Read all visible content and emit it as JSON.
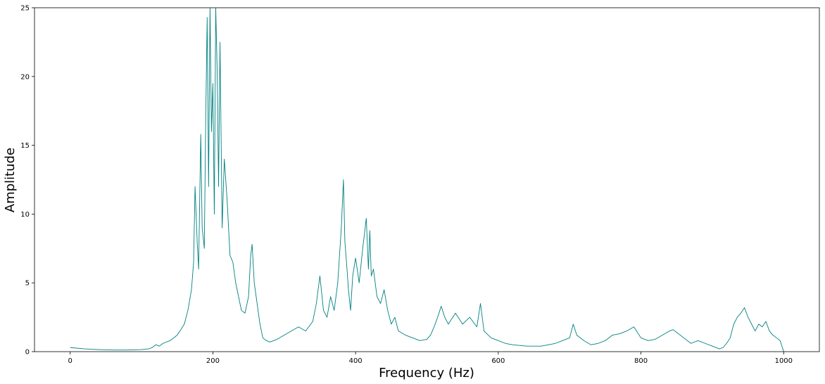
{
  "chart_data": {
    "type": "line",
    "title": "",
    "xlabel": "Frequency (Hz)",
    "ylabel": "Amplitude",
    "xlim": [
      -50,
      1050
    ],
    "ylim": [
      0,
      25
    ],
    "xticks": [
      0,
      200,
      400,
      600,
      800,
      1000
    ],
    "yticks": [
      0,
      5,
      10,
      15,
      20,
      25
    ],
    "grid": false,
    "line_color": "#008080",
    "series": [
      {
        "x": [
          0,
          20,
          40,
          60,
          80,
          100,
          110,
          115,
          120,
          125,
          130,
          140,
          150,
          160,
          165,
          170,
          173,
          175,
          178,
          180,
          183,
          185,
          188,
          190,
          192,
          194,
          196,
          198,
          200,
          202,
          204,
          206,
          208,
          210,
          213,
          216,
          220,
          224,
          228,
          232,
          236,
          240,
          245,
          250,
          253,
          255,
          258,
          262,
          266,
          270,
          275,
          280,
          290,
          300,
          310,
          320,
          330,
          340,
          345,
          350,
          355,
          360,
          365,
          370,
          375,
          380,
          383,
          385,
          388,
          390,
          393,
          396,
          400,
          405,
          410,
          415,
          418,
          420,
          422,
          425,
          430,
          435,
          440,
          445,
          450,
          455,
          460,
          470,
          480,
          490,
          500,
          505,
          510,
          515,
          520,
          525,
          530,
          540,
          550,
          560,
          570,
          575,
          580,
          590,
          600,
          610,
          620,
          640,
          660,
          680,
          690,
          700,
          705,
          710,
          720,
          730,
          740,
          750,
          760,
          770,
          780,
          790,
          800,
          810,
          820,
          830,
          840,
          845,
          850,
          860,
          870,
          880,
          890,
          900,
          910,
          915,
          920,
          925,
          930,
          935,
          940,
          945,
          950,
          955,
          960,
          965,
          970,
          975,
          980,
          985,
          990,
          995,
          1000
        ],
        "y": [
          0.3,
          0.2,
          0.15,
          0.12,
          0.12,
          0.15,
          0.2,
          0.3,
          0.5,
          0.4,
          0.6,
          0.8,
          1.2,
          2.0,
          3.0,
          4.5,
          6.5,
          12.0,
          8.0,
          6.0,
          15.8,
          9.0,
          7.5,
          17.0,
          24.3,
          12.0,
          25.0,
          16.0,
          19.5,
          10.0,
          25.0,
          20.5,
          12.0,
          22.5,
          9.0,
          14.0,
          11.0,
          7.0,
          6.5,
          5.0,
          4.0,
          3.0,
          2.8,
          4.0,
          7.0,
          7.8,
          5.0,
          3.5,
          2.0,
          1.0,
          0.8,
          0.7,
          0.9,
          1.2,
          1.5,
          1.8,
          1.5,
          2.2,
          3.5,
          5.5,
          3.0,
          2.5,
          4.0,
          3.0,
          5.0,
          9.0,
          12.5,
          8.0,
          6.0,
          4.5,
          3.0,
          5.5,
          6.8,
          5.0,
          7.5,
          9.7,
          6.0,
          8.8,
          5.5,
          6.0,
          4.0,
          3.5,
          4.5,
          3.0,
          2.0,
          2.5,
          1.5,
          1.2,
          1.0,
          0.8,
          0.9,
          1.2,
          1.8,
          2.5,
          3.3,
          2.5,
          2.0,
          2.8,
          2.0,
          2.5,
          1.8,
          3.5,
          1.5,
          1.0,
          0.8,
          0.6,
          0.5,
          0.4,
          0.4,
          0.6,
          0.8,
          1.0,
          2.0,
          1.2,
          0.8,
          0.5,
          0.6,
          0.8,
          1.2,
          1.3,
          1.5,
          1.8,
          1.0,
          0.8,
          0.9,
          1.2,
          1.5,
          1.6,
          1.4,
          1.0,
          0.6,
          0.8,
          0.6,
          0.4,
          0.2,
          0.3,
          0.6,
          1.0,
          2.0,
          2.5,
          2.8,
          3.2,
          2.5,
          2.0,
          1.5,
          2.0,
          1.8,
          2.2,
          1.5,
          1.2,
          1.0,
          0.8,
          0.0
        ]
      }
    ]
  }
}
